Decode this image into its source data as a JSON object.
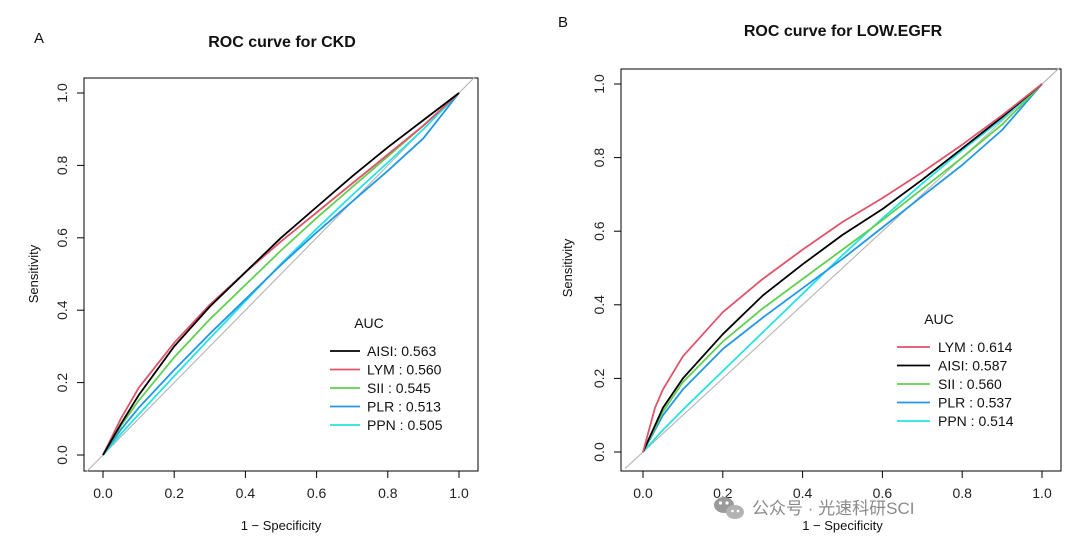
{
  "chart_data": [
    {
      "type": "line",
      "panel_letter": "A",
      "title": "ROC curve for CKD",
      "xlabel": "1 − Specificity",
      "ylabel": "Sensitivity",
      "xlim": [
        0,
        1
      ],
      "ylim": [
        0,
        1
      ],
      "xticks": [
        "0.0",
        "0.2",
        "0.4",
        "0.6",
        "0.8",
        "1.0"
      ],
      "yticks": [
        "0.0",
        "0.2",
        "0.4",
        "0.6",
        "0.8",
        "1.0"
      ],
      "legend_title": "AUC",
      "legend_position": "bottom-right",
      "diagonal_reference": true,
      "series": [
        {
          "name": "AISI",
          "label": "AISI: 0.563",
          "auc": 0.563,
          "color": "#000000",
          "points": [
            [
              0,
              0
            ],
            [
              0.05,
              0.085
            ],
            [
              0.1,
              0.165
            ],
            [
              0.2,
              0.3
            ],
            [
              0.3,
              0.41
            ],
            [
              0.4,
              0.505
            ],
            [
              0.5,
              0.6
            ],
            [
              0.6,
              0.685
            ],
            [
              0.7,
              0.77
            ],
            [
              0.8,
              0.85
            ],
            [
              0.9,
              0.925
            ],
            [
              1,
              1
            ]
          ]
        },
        {
          "name": "LYM",
          "label": "LYM : 0.560",
          "auc": 0.56,
          "color": "#DF536B",
          "points": [
            [
              0,
              0
            ],
            [
              0.05,
              0.1
            ],
            [
              0.1,
              0.185
            ],
            [
              0.2,
              0.31
            ],
            [
              0.3,
              0.415
            ],
            [
              0.4,
              0.505
            ],
            [
              0.5,
              0.59
            ],
            [
              0.6,
              0.67
            ],
            [
              0.7,
              0.75
            ],
            [
              0.8,
              0.83
            ],
            [
              0.9,
              0.91
            ],
            [
              1,
              1
            ]
          ]
        },
        {
          "name": "SII",
          "label": "SII : 0.545",
          "auc": 0.545,
          "color": "#61D04F",
          "points": [
            [
              0,
              0
            ],
            [
              0.05,
              0.08
            ],
            [
              0.1,
              0.15
            ],
            [
              0.2,
              0.27
            ],
            [
              0.3,
              0.375
            ],
            [
              0.4,
              0.47
            ],
            [
              0.5,
              0.565
            ],
            [
              0.6,
              0.655
            ],
            [
              0.7,
              0.74
            ],
            [
              0.8,
              0.825
            ],
            [
              0.9,
              0.91
            ],
            [
              1,
              1
            ]
          ]
        },
        {
          "name": "PLR",
          "label": "PLR : 0.513",
          "auc": 0.513,
          "color": "#2297E6",
          "points": [
            [
              0,
              0
            ],
            [
              0.05,
              0.07
            ],
            [
              0.1,
              0.13
            ],
            [
              0.2,
              0.235
            ],
            [
              0.3,
              0.335
            ],
            [
              0.4,
              0.43
            ],
            [
              0.5,
              0.525
            ],
            [
              0.6,
              0.615
            ],
            [
              0.7,
              0.7
            ],
            [
              0.8,
              0.785
            ],
            [
              0.9,
              0.875
            ],
            [
              1,
              1
            ]
          ]
        },
        {
          "name": "PPN",
          "label": "PPN : 0.505",
          "auc": 0.505,
          "color": "#28E2E5",
          "points": [
            [
              0,
              0
            ],
            [
              0.05,
              0.058
            ],
            [
              0.1,
              0.112
            ],
            [
              0.2,
              0.218
            ],
            [
              0.3,
              0.322
            ],
            [
              0.4,
              0.425
            ],
            [
              0.5,
              0.528
            ],
            [
              0.6,
              0.625
            ],
            [
              0.7,
              0.718
            ],
            [
              0.8,
              0.808
            ],
            [
              0.9,
              0.9
            ],
            [
              1,
              1
            ]
          ]
        }
      ]
    },
    {
      "type": "line",
      "panel_letter": "B",
      "title": "ROC curve for LOW.EGFR",
      "xlabel": "1 − Specificity",
      "ylabel": "Sensitivity",
      "xlim": [
        0,
        1
      ],
      "ylim": [
        0,
        1
      ],
      "xticks": [
        "0.0",
        "0.2",
        "0.4",
        "0.6",
        "0.8",
        "1.0"
      ],
      "yticks": [
        "0.0",
        "0.2",
        "0.4",
        "0.6",
        "0.8",
        "1.0"
      ],
      "legend_title": "AUC",
      "legend_position": "bottom-right",
      "diagonal_reference": true,
      "series": [
        {
          "name": "LYM",
          "label": "LYM : 0.614",
          "auc": 0.614,
          "color": "#DF536B",
          "points": [
            [
              0,
              0
            ],
            [
              0.03,
              0.12
            ],
            [
              0.05,
              0.17
            ],
            [
              0.1,
              0.26
            ],
            [
              0.15,
              0.32
            ],
            [
              0.2,
              0.38
            ],
            [
              0.3,
              0.47
            ],
            [
              0.4,
              0.55
            ],
            [
              0.5,
              0.625
            ],
            [
              0.6,
              0.69
            ],
            [
              0.7,
              0.76
            ],
            [
              0.8,
              0.835
            ],
            [
              0.9,
              0.915
            ],
            [
              1,
              1
            ]
          ]
        },
        {
          "name": "AISI",
          "label": "AISI: 0.587",
          "auc": 0.587,
          "color": "#000000",
          "points": [
            [
              0,
              0
            ],
            [
              0.05,
              0.12
            ],
            [
              0.1,
              0.2
            ],
            [
              0.2,
              0.32
            ],
            [
              0.3,
              0.425
            ],
            [
              0.4,
              0.51
            ],
            [
              0.5,
              0.59
            ],
            [
              0.6,
              0.66
            ],
            [
              0.7,
              0.74
            ],
            [
              0.8,
              0.825
            ],
            [
              0.9,
              0.91
            ],
            [
              1,
              1
            ]
          ]
        },
        {
          "name": "SII",
          "label": "SII : 0.560",
          "auc": 0.56,
          "color": "#61D04F",
          "points": [
            [
              0,
              0
            ],
            [
              0.05,
              0.11
            ],
            [
              0.1,
              0.19
            ],
            [
              0.2,
              0.3
            ],
            [
              0.3,
              0.39
            ],
            [
              0.4,
              0.47
            ],
            [
              0.5,
              0.55
            ],
            [
              0.6,
              0.63
            ],
            [
              0.7,
              0.715
            ],
            [
              0.8,
              0.8
            ],
            [
              0.9,
              0.89
            ],
            [
              1,
              1
            ]
          ]
        },
        {
          "name": "PLR",
          "label": "PLR : 0.537",
          "auc": 0.537,
          "color": "#2297E6",
          "points": [
            [
              0,
              0
            ],
            [
              0.05,
              0.1
            ],
            [
              0.1,
              0.17
            ],
            [
              0.2,
              0.28
            ],
            [
              0.3,
              0.365
            ],
            [
              0.4,
              0.445
            ],
            [
              0.5,
              0.525
            ],
            [
              0.6,
              0.61
            ],
            [
              0.7,
              0.695
            ],
            [
              0.8,
              0.78
            ],
            [
              0.9,
              0.875
            ],
            [
              1,
              1
            ]
          ]
        },
        {
          "name": "PPN",
          "label": "PPN : 0.514",
          "auc": 0.514,
          "color": "#28E2E5",
          "points": [
            [
              0,
              0
            ],
            [
              0.05,
              0.06
            ],
            [
              0.1,
              0.115
            ],
            [
              0.2,
              0.22
            ],
            [
              0.3,
              0.325
            ],
            [
              0.4,
              0.43
            ],
            [
              0.5,
              0.535
            ],
            [
              0.6,
              0.635
            ],
            [
              0.7,
              0.73
            ],
            [
              0.8,
              0.82
            ],
            [
              0.9,
              0.905
            ],
            [
              1,
              1
            ]
          ]
        }
      ]
    }
  ],
  "watermark": "公众号 · 光速科研SCI"
}
